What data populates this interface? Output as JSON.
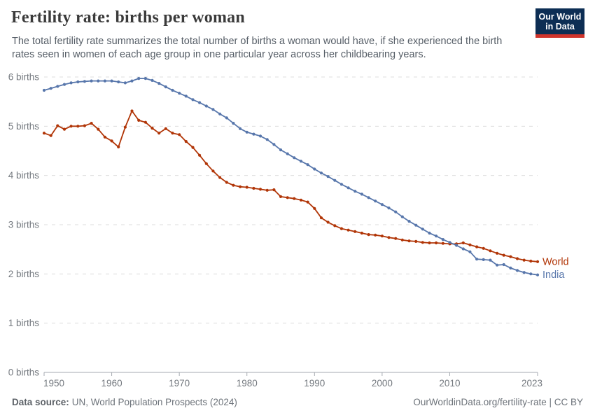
{
  "header": {
    "title": "Fertility rate: births per woman",
    "subtitle": "The total fertility rate summarizes the total number of births a woman would have, if she experienced the birth rates seen in women of each age group in one particular year across her childbearing years."
  },
  "logo": {
    "line1": "Our World",
    "line2": "in Data",
    "bg_color": "#0d2e54",
    "bar_color": "#d0342c"
  },
  "footer": {
    "datasource_label": "Data source:",
    "datasource_value": "UN, World Population Prospects (2024)",
    "attribution": "OurWorldinData.org/fertility-rate | CC BY"
  },
  "chart_data": {
    "type": "line",
    "title": "Fertility rate: births per woman",
    "xlabel": "",
    "ylabel": "births per woman",
    "xlim": [
      1950,
      2023
    ],
    "ylim": [
      0,
      6
    ],
    "grid": "horizontal dashed",
    "legend": "end-of-line labels",
    "yticks": [
      0,
      1,
      2,
      3,
      4,
      5,
      6
    ],
    "ytick_format": "{v} births",
    "xticks": [
      1950,
      1960,
      1970,
      1980,
      1990,
      2000,
      2010,
      2023
    ],
    "x": [
      1950,
      1951,
      1952,
      1953,
      1954,
      1955,
      1956,
      1957,
      1958,
      1959,
      1960,
      1961,
      1962,
      1963,
      1964,
      1965,
      1966,
      1967,
      1968,
      1969,
      1970,
      1971,
      1972,
      1973,
      1974,
      1975,
      1976,
      1977,
      1978,
      1979,
      1980,
      1981,
      1982,
      1983,
      1984,
      1985,
      1986,
      1987,
      1988,
      1989,
      1990,
      1991,
      1992,
      1993,
      1994,
      1995,
      1996,
      1997,
      1998,
      1999,
      2000,
      2001,
      2002,
      2003,
      2004,
      2005,
      2006,
      2007,
      2008,
      2009,
      2010,
      2011,
      2012,
      2013,
      2014,
      2015,
      2016,
      2017,
      2018,
      2019,
      2020,
      2021,
      2022,
      2023
    ],
    "series": [
      {
        "name": "World",
        "color": "#b13507",
        "values": [
          4.86,
          4.81,
          5.01,
          4.94,
          5.0,
          5.0,
          5.01,
          5.06,
          4.94,
          4.78,
          4.7,
          4.58,
          4.98,
          5.31,
          5.12,
          5.08,
          4.96,
          4.86,
          4.95,
          4.86,
          4.83,
          4.69,
          4.57,
          4.41,
          4.24,
          4.09,
          3.96,
          3.86,
          3.8,
          3.77,
          3.76,
          3.74,
          3.72,
          3.7,
          3.71,
          3.57,
          3.55,
          3.53,
          3.5,
          3.46,
          3.33,
          3.14,
          3.05,
          2.98,
          2.92,
          2.89,
          2.86,
          2.83,
          2.8,
          2.79,
          2.77,
          2.74,
          2.72,
          2.69,
          2.67,
          2.66,
          2.64,
          2.63,
          2.63,
          2.62,
          2.61,
          2.61,
          2.63,
          2.59,
          2.55,
          2.52,
          2.47,
          2.42,
          2.38,
          2.35,
          2.31,
          2.28,
          2.26,
          2.25
        ]
      },
      {
        "name": "India",
        "color": "#5776ab",
        "values": [
          5.73,
          5.77,
          5.81,
          5.85,
          5.88,
          5.9,
          5.91,
          5.92,
          5.92,
          5.92,
          5.92,
          5.9,
          5.88,
          5.92,
          5.97,
          5.97,
          5.93,
          5.87,
          5.8,
          5.73,
          5.67,
          5.61,
          5.54,
          5.48,
          5.41,
          5.34,
          5.25,
          5.17,
          5.06,
          4.95,
          4.88,
          4.84,
          4.8,
          4.73,
          4.63,
          4.52,
          4.44,
          4.36,
          4.29,
          4.22,
          4.13,
          4.05,
          3.98,
          3.9,
          3.82,
          3.75,
          3.68,
          3.62,
          3.55,
          3.48,
          3.41,
          3.34,
          3.26,
          3.16,
          3.07,
          2.99,
          2.91,
          2.83,
          2.77,
          2.7,
          2.64,
          2.58,
          2.51,
          2.45,
          2.3,
          2.29,
          2.28,
          2.18,
          2.19,
          2.12,
          2.07,
          2.03,
          2.0,
          1.98
        ]
      }
    ]
  }
}
